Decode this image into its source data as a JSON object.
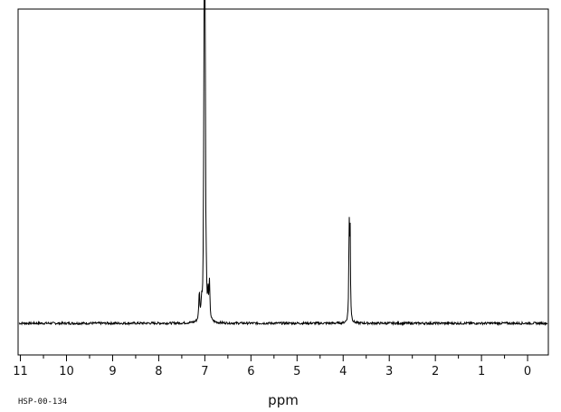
{
  "chart_data": {
    "type": "line",
    "title": "",
    "xlabel": "ppm",
    "ylabel": "",
    "xlim": [
      11.05,
      -0.45
    ],
    "ylim": [
      -0.1,
      1.1
    ],
    "x_reversed": true,
    "grid": false,
    "legend": "none",
    "x_ticks": [
      11,
      10,
      9,
      8,
      7,
      6,
      5,
      4,
      3,
      2,
      1,
      0
    ],
    "x_tick_labels": [
      "11",
      "10",
      "9",
      "8",
      "7",
      "6",
      "5",
      "4",
      "3",
      "2",
      "1",
      "0"
    ],
    "x_minor_step": 0.5,
    "baseline_noise": 0.004,
    "series": [
      {
        "peaks": [
          {
            "ppm": 7.12,
            "height": 0.1,
            "width": 0.012
          },
          {
            "ppm": 7.07,
            "height": 0.06,
            "width": 0.012
          },
          {
            "ppm": 7.02,
            "height": 0.48,
            "width": 0.01
          },
          {
            "ppm": 7.01,
            "height": 0.8,
            "width": 0.008
          },
          {
            "ppm": 7.0,
            "height": 0.7,
            "width": 0.008
          },
          {
            "ppm": 6.99,
            "height": 0.55,
            "width": 0.008
          },
          {
            "ppm": 6.97,
            "height": 0.1,
            "width": 0.01
          },
          {
            "ppm": 6.93,
            "height": 0.08,
            "width": 0.01
          },
          {
            "ppm": 6.9,
            "height": 0.13,
            "width": 0.012
          },
          {
            "ppm": 3.87,
            "height": 0.325,
            "width": 0.009
          },
          {
            "ppm": 3.85,
            "height": 0.325,
            "width": 0.009
          }
        ]
      }
    ],
    "sample_id": "HSP-00-134"
  }
}
